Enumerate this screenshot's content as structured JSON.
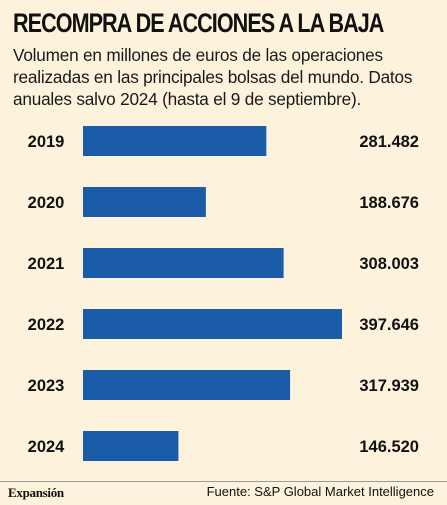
{
  "header": {
    "title": "RECOMPRA DE ACCIONES A LA BAJA",
    "subtitle": "Volumen en millones de euros de las operaciones realizadas en las principales bolsas del mundo. Datos anuales salvo 2024 (hasta el 9 de septiembre)."
  },
  "footer": {
    "brand": "Expansión",
    "source": "Fuente: S&P Global Market Intelligence"
  },
  "colors": {
    "background": "#fdf3dc",
    "bar": "#1a5ca8",
    "text": "#111111"
  },
  "chart_data": {
    "type": "bar",
    "orientation": "horizontal",
    "title": "RECOMPRA DE ACCIONES A LA BAJA",
    "categories": [
      "2019",
      "2020",
      "2021",
      "2022",
      "2023",
      "2024"
    ],
    "values": [
      281482,
      188676,
      308003,
      397646,
      317939,
      146520
    ],
    "value_labels": [
      "281.482",
      "188.676",
      "308.003",
      "397.646",
      "317.939",
      "146.520"
    ],
    "xlim": [
      0,
      397646
    ],
    "grid": false,
    "legend": "none"
  }
}
